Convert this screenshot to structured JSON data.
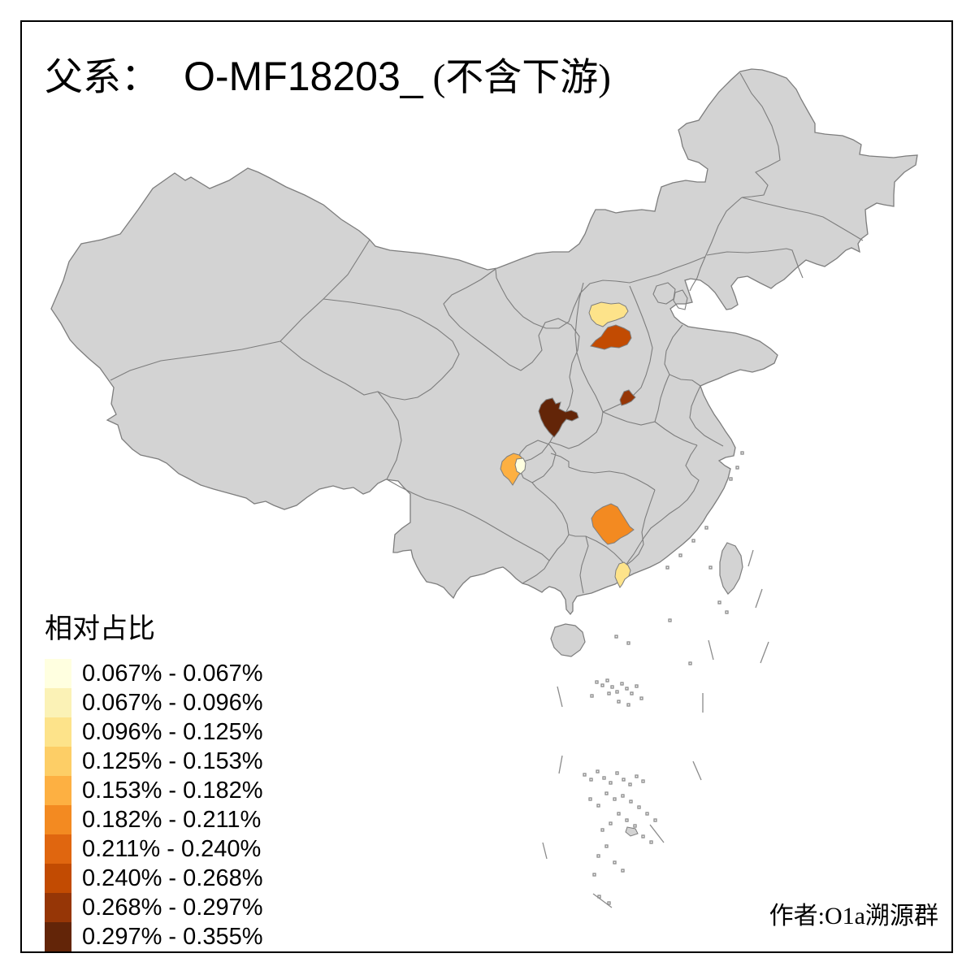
{
  "title": {
    "prefix": "父系：",
    "code": "O-MF18203_",
    "suffix": "(不含下游)"
  },
  "legend": {
    "title": "相对占比",
    "items": [
      {
        "range": "0.067% - 0.067%",
        "color": "#FFFFE0"
      },
      {
        "range": "0.067% - 0.096%",
        "color": "#FBF2B6"
      },
      {
        "range": "0.096% - 0.125%",
        "color": "#FDE38A"
      },
      {
        "range": "0.125% - 0.153%",
        "color": "#FDCE66"
      },
      {
        "range": "0.153% - 0.182%",
        "color": "#FDB042"
      },
      {
        "range": "0.182% - 0.211%",
        "color": "#F38A21"
      },
      {
        "range": "0.211% - 0.240%",
        "color": "#E0660F"
      },
      {
        "range": "0.240% - 0.268%",
        "color": "#C24B02"
      },
      {
        "range": "0.268% - 0.297%",
        "color": "#963606"
      },
      {
        "range": "0.297% - 0.355%",
        "color": "#632508"
      }
    ]
  },
  "credit": "作者:O1a溯源群",
  "map": {
    "land_color": "#d3d3d3",
    "border_color": "#7d7d7d",
    "sea_color": "#ffffff",
    "speck_color": "#8a8a8a",
    "highlighted_regions": [
      {
        "id": "region-north-shanxi",
        "color": "#FDE38A",
        "legend_range": "0.096% - 0.125%"
      },
      {
        "id": "region-central-shanxi",
        "color": "#C24B02",
        "legend_range": "0.240% - 0.268%"
      },
      {
        "id": "region-central-henan",
        "color": "#963606",
        "legend_range": "0.268% - 0.297%"
      },
      {
        "id": "region-south-shaanxi",
        "color": "#632508",
        "legend_range": "0.297% - 0.355%"
      },
      {
        "id": "region-east-sichuan",
        "color": "#FDB042",
        "legend_range": "0.153% - 0.182%"
      },
      {
        "id": "region-east-sichuan-pale",
        "color": "#FFFFE0",
        "legend_range": "0.067% - 0.067%"
      },
      {
        "id": "region-south-hunan",
        "color": "#F38A21",
        "legend_range": "0.182% - 0.211%"
      },
      {
        "id": "region-central-guangdong",
        "color": "#FDE38A",
        "legend_range": "0.096% - 0.125%"
      }
    ]
  },
  "chart_data": {
    "type": "choropleth",
    "title": "父系： O-MF18203_ (不含下游)",
    "legend_title": "相对占比",
    "value_unit": "%",
    "class_breaks": [
      0.067,
      0.067,
      0.096,
      0.125,
      0.153,
      0.182,
      0.211,
      0.24,
      0.268,
      0.297,
      0.355
    ],
    "palette": [
      "#FFFFE0",
      "#FBF2B6",
      "#FDE38A",
      "#FDCE66",
      "#FDB042",
      "#F38A21",
      "#E0660F",
      "#C24B02",
      "#963606",
      "#632508"
    ],
    "shaded_region_count": 8
  }
}
